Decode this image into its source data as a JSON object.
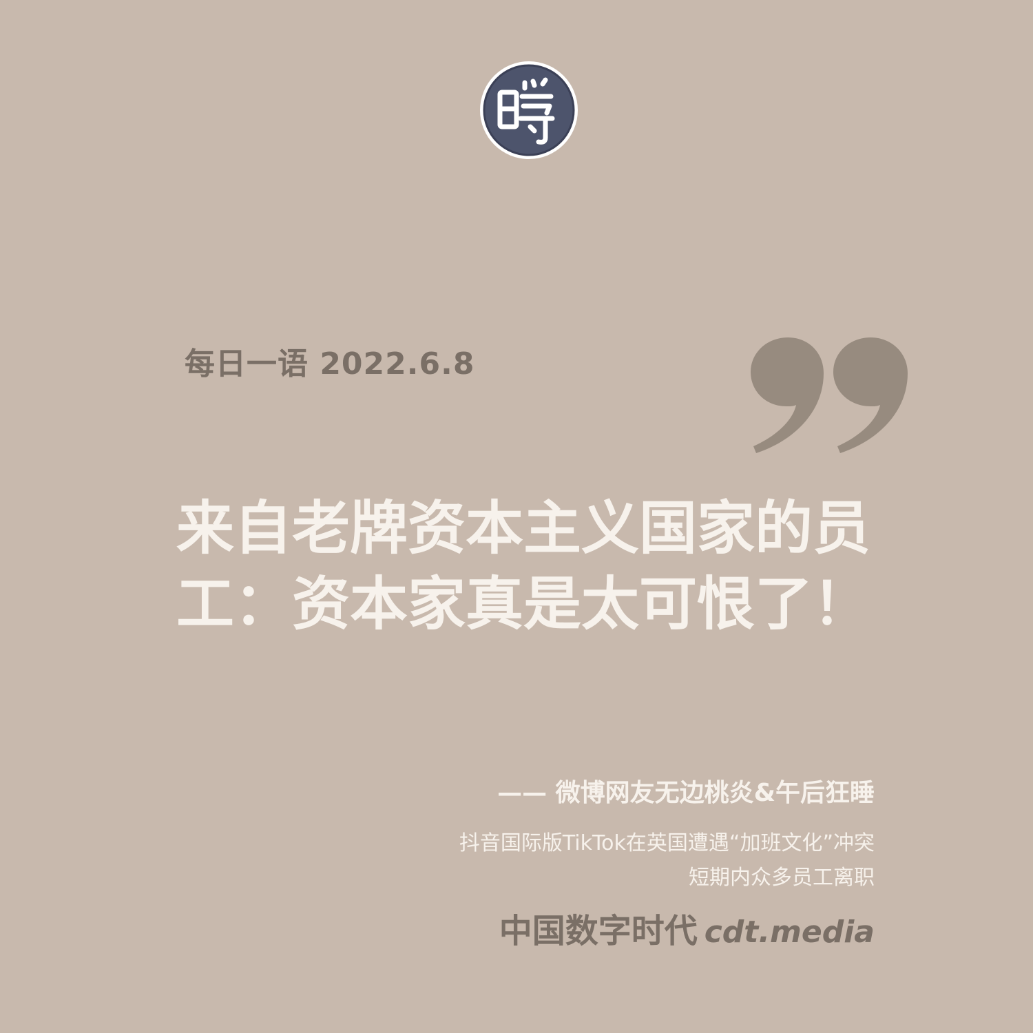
{
  "colors": {
    "background": "#c8b9ad",
    "quote_text": "#f7f2ec",
    "muted_text": "#7a6f66",
    "quote_mark": "#978b7f",
    "logo_fill": "#4d546c"
  },
  "logo": {
    "icon": "seal-logo-icon",
    "glyph": "時"
  },
  "header": {
    "date_line": "每日一语 2022.6.8"
  },
  "quote": {
    "icon": "closing-quote-icon",
    "text": "来自老牌资本主义国家的员工：资本家真是太可恨了！"
  },
  "attribution": {
    "text": "—— 微博网友无边桃炎&午后狂睡"
  },
  "headline": {
    "line1": "抖音国际版TikTok在英国遭遇“加班文化”冲突",
    "line2": "短期内众多员工离职"
  },
  "brand": {
    "name": "中国数字时代",
    "domain": "cdt.media"
  }
}
